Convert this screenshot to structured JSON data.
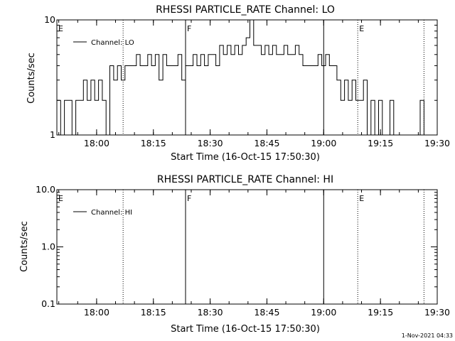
{
  "chart_data": [
    {
      "type": "line",
      "title": "RHESSI PARTICLE_RATE Channel: LO",
      "xlabel": "Start Time (16-Oct-15 17:50:30)",
      "ylabel": "Counts/sec",
      "yscale": "log",
      "ylim": [
        1,
        10
      ],
      "yticks": [
        {
          "v": 1,
          "label": "1"
        },
        {
          "v": 10,
          "label": "10"
        }
      ],
      "xlim_minutes": [
        -1,
        99.5
      ],
      "xticks": [
        {
          "m": 9.5,
          "label": "18:00"
        },
        {
          "m": 24.5,
          "label": "18:15"
        },
        {
          "m": 39.5,
          "label": "18:30"
        },
        {
          "m": 54.5,
          "label": "18:45"
        },
        {
          "m": 69.5,
          "label": "19:00"
        },
        {
          "m": 84.5,
          "label": "19:15"
        },
        {
          "m": 99.5,
          "label": "19:30"
        }
      ],
      "legend": {
        "position": "top-left",
        "label": "Channel: LO"
      },
      "markers": [
        {
          "m": -1,
          "label": "E",
          "style": "dotted"
        },
        {
          "m": 16.5,
          "label": "",
          "style": "dotted"
        },
        {
          "m": 33,
          "label": "F",
          "style": "solid"
        },
        {
          "m": 69.5,
          "label": "",
          "style": "solid"
        },
        {
          "m": 78.5,
          "label": "E",
          "style": "dotted"
        },
        {
          "m": 96,
          "label": "",
          "style": "dotted"
        }
      ],
      "series": [
        {
          "name": "Channel: LO",
          "x_minutes": [
            -1,
            0,
            1,
            2,
            3,
            4,
            5,
            6,
            7,
            8,
            9,
            10,
            11,
            12,
            13,
            14,
            15,
            16,
            17,
            18,
            19,
            20,
            21,
            22,
            23,
            24,
            25,
            26,
            27,
            28,
            29,
            30,
            31,
            32,
            33,
            34,
            35,
            36,
            37,
            38,
            39,
            40,
            41,
            42,
            43,
            44,
            45,
            46,
            47,
            48,
            49,
            50,
            51,
            52,
            53,
            54,
            55,
            56,
            57,
            58,
            59,
            60,
            61,
            62,
            63,
            64,
            65,
            66,
            67,
            68,
            69,
            70,
            71,
            72,
            73,
            74,
            75,
            76,
            77,
            78,
            79,
            80,
            81,
            82,
            83,
            84,
            85,
            86,
            87,
            88,
            89,
            90,
            91,
            92,
            93,
            94,
            95,
            96,
            97,
            98,
            99
          ],
          "y": [
            2,
            1,
            2,
            2,
            1,
            2,
            2,
            3,
            2,
            3,
            2,
            3,
            2,
            1,
            4,
            3,
            4,
            3,
            4,
            4,
            4,
            5,
            4,
            4,
            5,
            4,
            5,
            3,
            5,
            4,
            4,
            4,
            5,
            3,
            4,
            4,
            5,
            4,
            5,
            4,
            5,
            5,
            4,
            6,
            5,
            6,
            5,
            6,
            5,
            6,
            7,
            10,
            6,
            6,
            5,
            6,
            5,
            6,
            5,
            5,
            6,
            5,
            5,
            6,
            5,
            4,
            4,
            4,
            4,
            5,
            4,
            5,
            4,
            4,
            3,
            2,
            3,
            2,
            3,
            2,
            2,
            3,
            1,
            2,
            1,
            2,
            1,
            1,
            2,
            1,
            1,
            1,
            1,
            1,
            1,
            1,
            2,
            1,
            1,
            1,
            1
          ]
        }
      ]
    },
    {
      "type": "line",
      "title": "RHESSI PARTICLE_RATE Channel: HI",
      "xlabel": "Start Time (16-Oct-15 17:50:30)",
      "ylabel": "Counts/sec",
      "yscale": "log",
      "ylim": [
        0.1,
        10
      ],
      "yticks": [
        {
          "v": 0.1,
          "label": "0.1"
        },
        {
          "v": 1,
          "label": "1.0"
        },
        {
          "v": 10,
          "label": "10.0"
        }
      ],
      "xlim_minutes": [
        -1,
        99.5
      ],
      "xticks": [
        {
          "m": 9.5,
          "label": "18:00"
        },
        {
          "m": 24.5,
          "label": "18:15"
        },
        {
          "m": 39.5,
          "label": "18:30"
        },
        {
          "m": 54.5,
          "label": "18:45"
        },
        {
          "m": 69.5,
          "label": "19:00"
        },
        {
          "m": 84.5,
          "label": "19:15"
        },
        {
          "m": 99.5,
          "label": "19:30"
        }
      ],
      "legend": {
        "position": "top-left",
        "label": "Channel: HI"
      },
      "markers": [
        {
          "m": -1,
          "label": "E",
          "style": "dotted"
        },
        {
          "m": 16.5,
          "label": "",
          "style": "dotted"
        },
        {
          "m": 33,
          "label": "F",
          "style": "solid"
        },
        {
          "m": 69.5,
          "label": "",
          "style": "solid"
        },
        {
          "m": 78.5,
          "label": "E",
          "style": "dotted"
        },
        {
          "m": 96,
          "label": "",
          "style": "dotted"
        }
      ],
      "series": [
        {
          "name": "Channel: HI",
          "x_minutes": [],
          "y": []
        }
      ]
    }
  ],
  "timestamp": "1-Nov-2021 04:33"
}
